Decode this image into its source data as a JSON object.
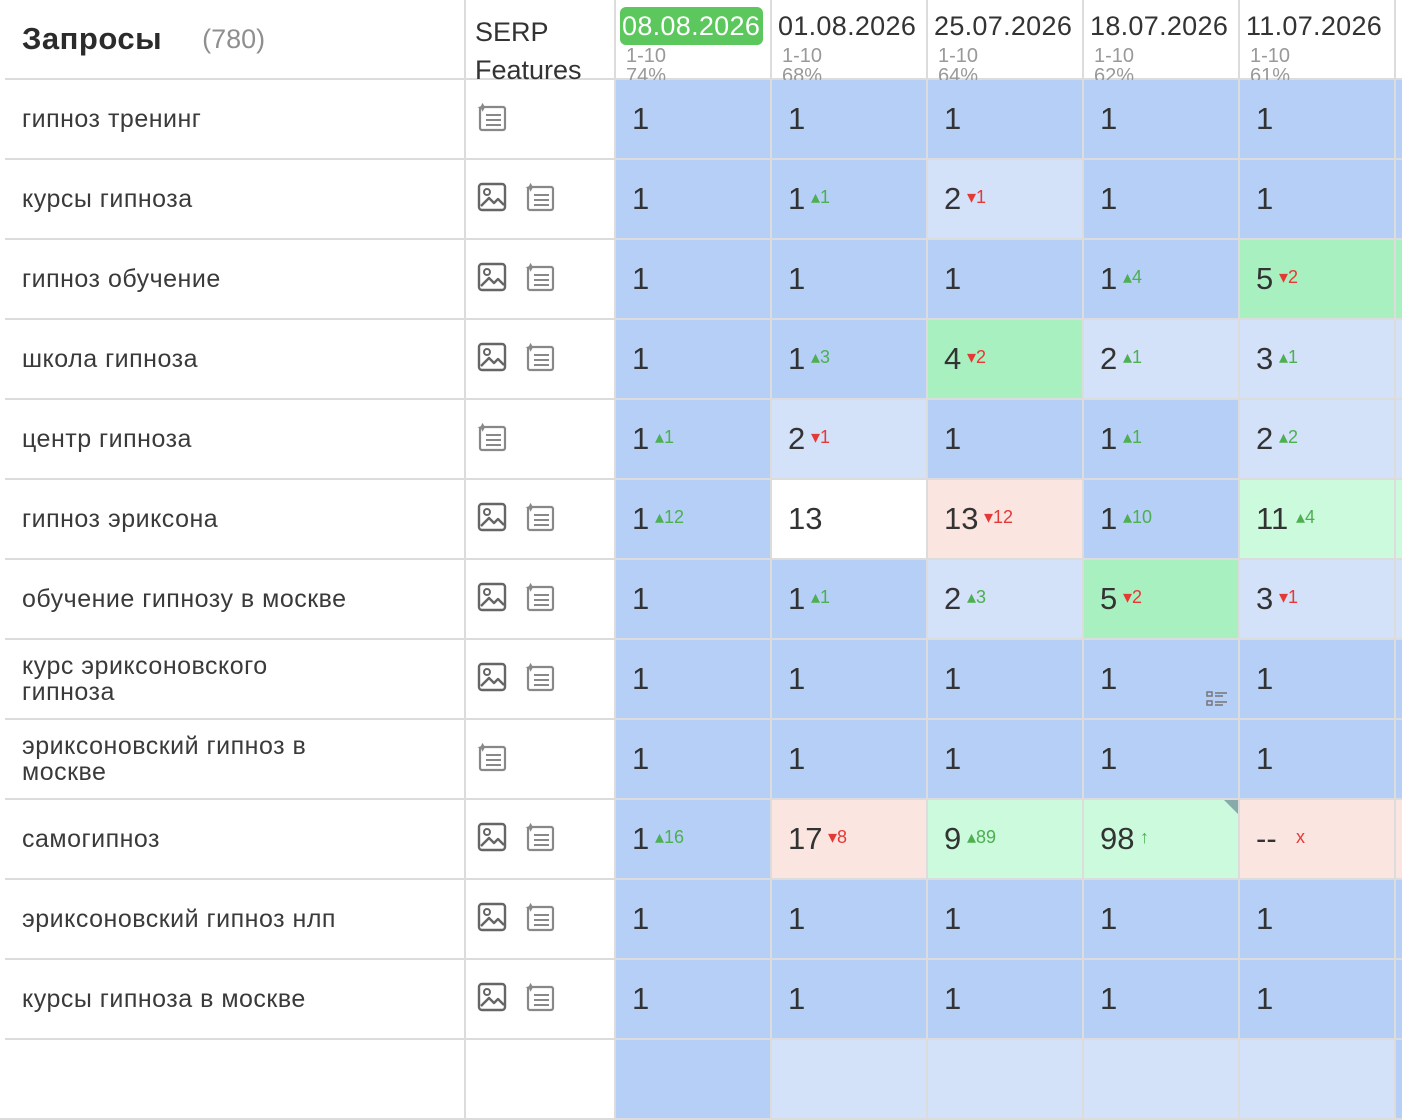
{
  "header": {
    "queries_title": "Запросы",
    "queries_count": "(780)",
    "serp_line1": "SERP",
    "serp_line2": "Features",
    "dates": [
      {
        "date": "08.08.2026",
        "range": "1-10",
        "pct": "74%",
        "active": true
      },
      {
        "date": "01.08.2026",
        "range": "1-10",
        "pct": "68%",
        "active": false
      },
      {
        "date": "25.07.2026",
        "range": "1-10",
        "pct": "64%",
        "active": false
      },
      {
        "date": "18.07.2026",
        "range": "1-10",
        "pct": "62%",
        "active": false
      },
      {
        "date": "11.07.2026",
        "range": "1-10",
        "pct": "61%",
        "active": false
      }
    ]
  },
  "legend": {
    "t1": "#b6cff6",
    "t2": "#d3e1f9",
    "t3": "#a8f0c0",
    "t4": "#ccfadc",
    "t5": "#fbe5e1",
    "t0": "#ffffff"
  },
  "rows": [
    {
      "query": "гипноз тренинг",
      "features": [
        "snippet-icon"
      ],
      "cells": [
        {
          "p": "1",
          "t": "t1"
        },
        {
          "p": "1",
          "t": "t1"
        },
        {
          "p": "1",
          "t": "t1"
        },
        {
          "p": "1",
          "t": "t1"
        },
        {
          "p": "1",
          "t": "t1"
        }
      ]
    },
    {
      "query": "курсы гипноза",
      "features": [
        "image-icon",
        "snippet-icon"
      ],
      "cells": [
        {
          "p": "1",
          "t": "t1"
        },
        {
          "p": "1",
          "t": "t1",
          "d": "1",
          "dir": "up"
        },
        {
          "p": "2",
          "t": "t2",
          "d": "1",
          "dir": "down"
        },
        {
          "p": "1",
          "t": "t1"
        },
        {
          "p": "1",
          "t": "t1"
        }
      ]
    },
    {
      "query": "гипноз обучение",
      "features": [
        "image-icon",
        "snippet-icon"
      ],
      "cells": [
        {
          "p": "1",
          "t": "t1"
        },
        {
          "p": "1",
          "t": "t1"
        },
        {
          "p": "1",
          "t": "t1"
        },
        {
          "p": "1",
          "t": "t1",
          "d": "4",
          "dir": "up"
        },
        {
          "p": "5",
          "t": "t3",
          "d": "2",
          "dir": "down"
        }
      ]
    },
    {
      "query": "школа гипноза",
      "features": [
        "image-icon",
        "snippet-icon"
      ],
      "cells": [
        {
          "p": "1",
          "t": "t1"
        },
        {
          "p": "1",
          "t": "t1",
          "d": "3",
          "dir": "up"
        },
        {
          "p": "4",
          "t": "t3",
          "d": "2",
          "dir": "down"
        },
        {
          "p": "2",
          "t": "t2",
          "d": "1",
          "dir": "up"
        },
        {
          "p": "3",
          "t": "t2",
          "d": "1",
          "dir": "up"
        }
      ]
    },
    {
      "query": "центр гипноза",
      "features": [
        "snippet-icon"
      ],
      "cells": [
        {
          "p": "1",
          "t": "t1",
          "d": "1",
          "dir": "up"
        },
        {
          "p": "2",
          "t": "t2",
          "d": "1",
          "dir": "down"
        },
        {
          "p": "1",
          "t": "t1"
        },
        {
          "p": "1",
          "t": "t1",
          "d": "1",
          "dir": "up"
        },
        {
          "p": "2",
          "t": "t2",
          "d": "2",
          "dir": "up"
        }
      ]
    },
    {
      "query": "гипноз эриксона",
      "features": [
        "image-icon",
        "snippet-icon"
      ],
      "cells": [
        {
          "p": "1",
          "t": "t1",
          "d": "12",
          "dir": "up"
        },
        {
          "p": "13",
          "t": "t0"
        },
        {
          "p": "13",
          "t": "t5",
          "d": "12",
          "dir": "down"
        },
        {
          "p": "1",
          "t": "t1",
          "d": "10",
          "dir": "up"
        },
        {
          "p": "11",
          "t": "t4",
          "d": "4",
          "dir": "up"
        }
      ]
    },
    {
      "query": "обучение гипнозу в москве",
      "features": [
        "image-icon",
        "snippet-icon"
      ],
      "cells": [
        {
          "p": "1",
          "t": "t1"
        },
        {
          "p": "1",
          "t": "t1",
          "d": "1",
          "dir": "up"
        },
        {
          "p": "2",
          "t": "t2",
          "d": "3",
          "dir": "up"
        },
        {
          "p": "5",
          "t": "t3",
          "d": "2",
          "dir": "down"
        },
        {
          "p": "3",
          "t": "t2",
          "d": "1",
          "dir": "down"
        }
      ]
    },
    {
      "query": "курс эриксоновского гипноза",
      "features": [
        "image-icon",
        "snippet-icon"
      ],
      "cells": [
        {
          "p": "1",
          "t": "t1"
        },
        {
          "p": "1",
          "t": "t1"
        },
        {
          "p": "1",
          "t": "t1"
        },
        {
          "p": "1",
          "t": "t1",
          "list": true
        },
        {
          "p": "1",
          "t": "t1"
        }
      ]
    },
    {
      "query": "эриксоновский гипноз в москве",
      "features": [
        "snippet-icon"
      ],
      "cells": [
        {
          "p": "1",
          "t": "t1"
        },
        {
          "p": "1",
          "t": "t1"
        },
        {
          "p": "1",
          "t": "t1"
        },
        {
          "p": "1",
          "t": "t1"
        },
        {
          "p": "1",
          "t": "t1"
        }
      ]
    },
    {
      "query": "самогипноз",
      "features": [
        "image-icon",
        "snippet-icon"
      ],
      "cells": [
        {
          "p": "1",
          "t": "t1",
          "d": "16",
          "dir": "up"
        },
        {
          "p": "17",
          "t": "t5",
          "d": "8",
          "dir": "down"
        },
        {
          "p": "9",
          "t": "t4",
          "d": "89",
          "dir": "up"
        },
        {
          "p": "98",
          "t": "t4",
          "d": "↑",
          "dir": "up",
          "mark": true
        },
        {
          "p": "--",
          "t": "t5",
          "d": "x",
          "dir": "down"
        }
      ]
    },
    {
      "query": "эриксоновский гипноз нлп",
      "features": [
        "image-icon",
        "snippet-icon"
      ],
      "cells": [
        {
          "p": "1",
          "t": "t1"
        },
        {
          "p": "1",
          "t": "t1"
        },
        {
          "p": "1",
          "t": "t1"
        },
        {
          "p": "1",
          "t": "t1"
        },
        {
          "p": "1",
          "t": "t1"
        }
      ]
    },
    {
      "query": "курсы гипноза в москве",
      "features": [
        "image-icon",
        "snippet-icon"
      ],
      "cells": [
        {
          "p": "1",
          "t": "t1"
        },
        {
          "p": "1",
          "t": "t1"
        },
        {
          "p": "1",
          "t": "t1"
        },
        {
          "p": "1",
          "t": "t1"
        },
        {
          "p": "1",
          "t": "t1"
        }
      ]
    }
  ]
}
